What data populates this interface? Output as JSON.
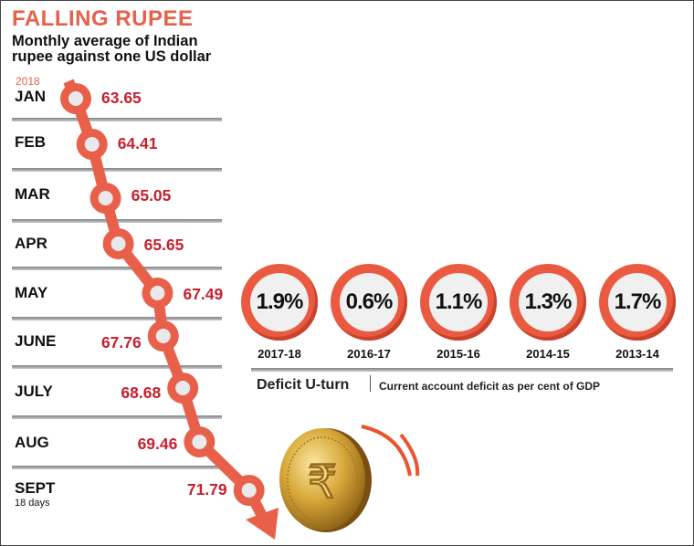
{
  "header": {
    "title": "FALLING RUPEE",
    "subtitle": "Monthly average of Indian rupee against one US dollar",
    "year_label": "2018"
  },
  "chart_data": [
    {
      "type": "line",
      "title": "FALLING RUPEE",
      "subtitle": "Monthly average of Indian rupee against one US dollar",
      "categories": [
        "JAN",
        "FEB",
        "MAR",
        "APR",
        "MAY",
        "JUNE",
        "JULY",
        "AUG",
        "SEPT"
      ],
      "values": [
        63.65,
        64.41,
        65.05,
        65.65,
        67.49,
        67.76,
        68.68,
        69.46,
        71.79
      ],
      "labels": [
        "63.65",
        "64.41",
        "65.05",
        "65.65",
        "67.49",
        "67.76",
        "68.68",
        "69.46",
        "71.79"
      ],
      "note": "18 days",
      "color": "#e8604a",
      "value_color": "#c8202f"
    },
    {
      "type": "table",
      "title": "Deficit U-turn",
      "subtitle": "Current account deficit as per cent of GDP",
      "categories": [
        "2017-18",
        "2016-17",
        "2015-16",
        "2014-15",
        "2013-14"
      ],
      "values": [
        1.9,
        0.6,
        1.1,
        1.3,
        1.7
      ],
      "labels": [
        "1.9%",
        "0.6%",
        "1.1%",
        "1.3%",
        "1.7%"
      ],
      "color": "#ea5a40"
    }
  ],
  "illustration": {
    "icon": "rupee-coin-icon",
    "coin_text": "RUPEE"
  }
}
